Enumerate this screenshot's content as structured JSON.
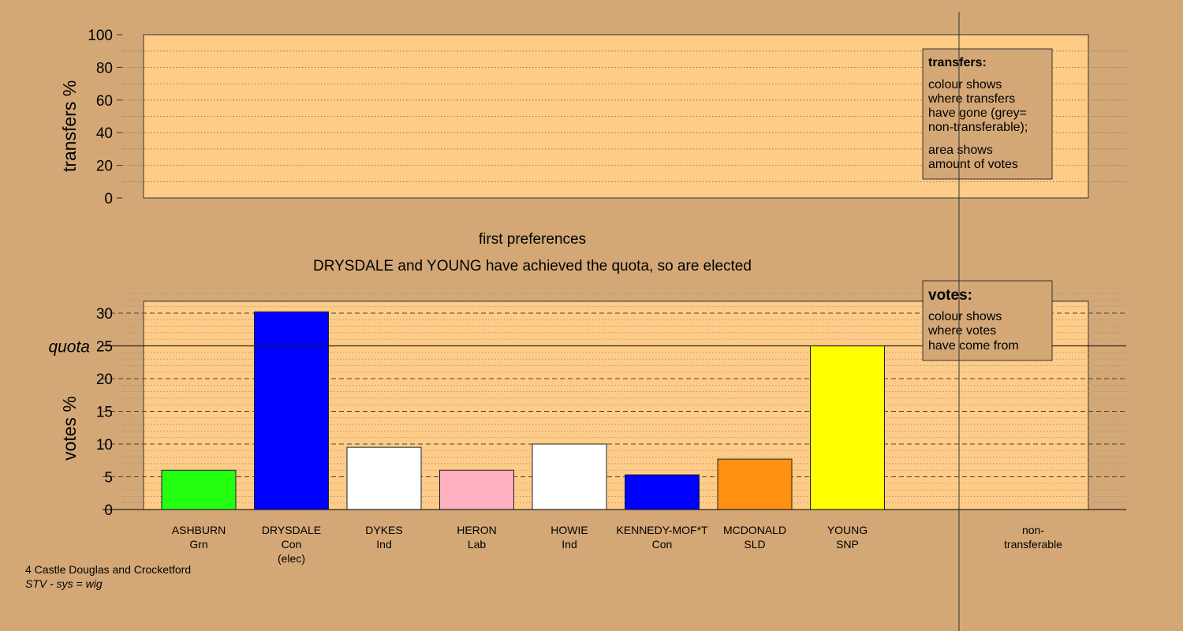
{
  "colors": {
    "background": "#d4a876",
    "plot_area": "#ffcc88",
    "ashburn": "#22ff11",
    "drysdale": "#0000ff",
    "dykes": "#ffffff",
    "heron": "#ffb0c0",
    "howie": "#ffffff",
    "kennedy": "#0000ff",
    "mcdonald": "#ff9010",
    "young": "#ffff00"
  },
  "stage": {
    "title": "first preferences",
    "message": "DRYSDALE and YOUNG have achieved the quota, so are elected"
  },
  "transfers_legend": {
    "heading": "transfers:",
    "line1": "colour shows",
    "line2": "where transfers",
    "line3": "have gone (grey=",
    "line4": "non-transferable);",
    "line5": "area shows",
    "line6": "amount of votes"
  },
  "votes_legend": {
    "heading": "votes:",
    "line1": "colour shows",
    "line2": "where votes",
    "line3": "have come from"
  },
  "footer": {
    "ward": "4 Castle Douglas and Crocketford",
    "system": "STV - sys = wig"
  },
  "chart_data": [
    {
      "type": "bar",
      "ylabel": "transfers %",
      "ylim": [
        0,
        100
      ],
      "yticks": [
        "0",
        "20",
        "40",
        "60",
        "80",
        "100"
      ],
      "values": []
    },
    {
      "type": "bar",
      "ylabel": "votes %",
      "ylim": [
        0,
        32
      ],
      "yticks": [
        "0",
        "5",
        "10",
        "15",
        "20",
        "25",
        "30"
      ],
      "quota_label": "quota",
      "quota": 25,
      "categories": [
        {
          "name": "ASHBURN",
          "party": "Grn",
          "note": "",
          "value": 6.0,
          "color": "#22ff11"
        },
        {
          "name": "DRYSDALE",
          "party": "Con",
          "note": "(elec)",
          "value": 30.2,
          "color": "#0000ff"
        },
        {
          "name": "DYKES",
          "party": "Ind",
          "note": "",
          "value": 9.5,
          "color": "#ffffff"
        },
        {
          "name": "HERON",
          "party": "Lab",
          "note": "",
          "value": 6.0,
          "color": "#ffb0c0"
        },
        {
          "name": "HOWIE",
          "party": "Ind",
          "note": "",
          "value": 10.0,
          "color": "#ffffff"
        },
        {
          "name": "KENNEDY-MOF*T",
          "party": "Con",
          "note": "",
          "value": 5.3,
          "color": "#0000ff"
        },
        {
          "name": "MCDONALD",
          "party": "SLD",
          "note": "",
          "value": 7.7,
          "color": "#ff9010"
        },
        {
          "name": "YOUNG",
          "party": "SNP",
          "note": "",
          "value": 25.0,
          "color": "#ffff00"
        }
      ],
      "nontransferable_label_1": "non-",
      "nontransferable_label_2": "transferable"
    }
  ]
}
